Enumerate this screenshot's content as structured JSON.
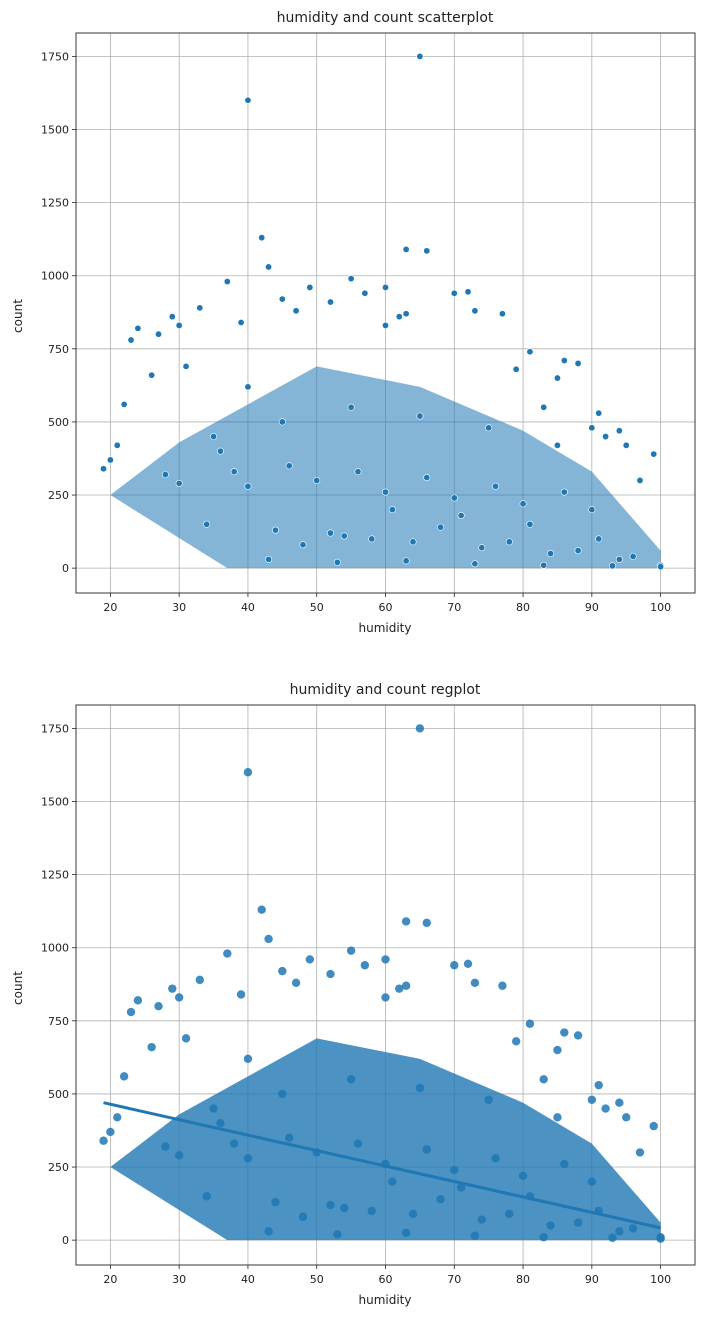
{
  "chart_data": [
    {
      "type": "scatter",
      "title": "humidity and count scatterplot",
      "xlabel": "humidity",
      "ylabel": "count",
      "xlim": [
        15,
        105
      ],
      "ylim": [
        -85,
        1830
      ],
      "xticks": [
        20,
        30,
        40,
        50,
        60,
        70,
        80,
        90,
        100
      ],
      "yticks": [
        0,
        250,
        500,
        750,
        1000,
        1250,
        1500,
        1750
      ],
      "grid": true,
      "color": "#1f77b4",
      "series": [
        {
          "x": [
            19,
            20,
            21,
            22,
            23,
            24,
            26,
            27,
            29,
            30,
            31,
            33,
            37,
            39,
            40,
            40,
            42,
            43,
            45,
            47,
            49,
            52,
            55,
            57,
            60,
            60,
            62,
            63,
            63,
            65,
            66,
            70,
            72,
            73,
            77,
            79,
            81,
            83,
            85,
            86,
            88,
            90,
            91,
            92,
            94,
            95,
            97,
            99,
            100,
            100,
            35,
            45,
            55,
            65,
            75,
            85,
            50,
            60,
            70,
            80,
            40,
            30,
            90,
            52,
            68,
            58,
            48,
            78,
            88,
            96,
            43,
            53,
            63,
            73,
            83,
            93,
            36,
            46,
            56,
            66,
            76,
            86,
            34,
            44,
            54,
            64,
            74,
            84,
            94,
            28,
            38,
            61,
            71,
            81,
            91
          ],
          "y": [
            340,
            370,
            420,
            560,
            780,
            820,
            660,
            800,
            860,
            830,
            690,
            890,
            980,
            840,
            1600,
            620,
            1130,
            1030,
            920,
            880,
            960,
            910,
            990,
            940,
            960,
            830,
            860,
            1090,
            870,
            1750,
            1085,
            940,
            945,
            880,
            870,
            680,
            740,
            550,
            650,
            710,
            700,
            480,
            530,
            450,
            470,
            420,
            300,
            390,
            10,
            5,
            450,
            500,
            550,
            520,
            480,
            420,
            300,
            260,
            240,
            220,
            280,
            290,
            200,
            120,
            140,
            100,
            80,
            90,
            60,
            40,
            30,
            20,
            25,
            15,
            10,
            8,
            400,
            350,
            330,
            310,
            280,
            260,
            150,
            130,
            110,
            90,
            70,
            50,
            30,
            320,
            330,
            200,
            180,
            150,
            100
          ]
        }
      ]
    },
    {
      "type": "scatter",
      "title": "humidity and count regplot",
      "xlabel": "humidity",
      "ylabel": "count",
      "xlim": [
        15,
        105
      ],
      "ylim": [
        -85,
        1830
      ],
      "xticks": [
        20,
        30,
        40,
        50,
        60,
        70,
        80,
        90,
        100
      ],
      "yticks": [
        0,
        250,
        500,
        750,
        1000,
        1250,
        1500,
        1750
      ],
      "grid": true,
      "color": "#1f77b4",
      "regression": {
        "x": [
          19,
          100
        ],
        "y": [
          470,
          42
        ]
      },
      "series": [
        {
          "x": [
            19,
            20,
            21,
            22,
            23,
            24,
            26,
            27,
            29,
            30,
            31,
            33,
            37,
            39,
            40,
            40,
            42,
            43,
            45,
            47,
            49,
            52,
            55,
            57,
            60,
            60,
            62,
            63,
            63,
            65,
            66,
            70,
            72,
            73,
            77,
            79,
            81,
            83,
            85,
            86,
            88,
            90,
            91,
            92,
            94,
            95,
            97,
            99,
            100,
            100,
            35,
            45,
            55,
            65,
            75,
            85,
            50,
            60,
            70,
            80,
            40,
            30,
            90,
            52,
            68,
            58,
            48,
            78,
            88,
            96,
            43,
            53,
            63,
            73,
            83,
            93,
            36,
            46,
            56,
            66,
            76,
            86,
            34,
            44,
            54,
            64,
            74,
            84,
            94,
            28,
            38,
            61,
            71,
            81,
            91
          ],
          "y": [
            340,
            370,
            420,
            560,
            780,
            820,
            660,
            800,
            860,
            830,
            690,
            890,
            980,
            840,
            1600,
            620,
            1130,
            1030,
            920,
            880,
            960,
            910,
            990,
            940,
            960,
            830,
            860,
            1090,
            870,
            1750,
            1085,
            940,
            945,
            880,
            870,
            680,
            740,
            550,
            650,
            710,
            700,
            480,
            530,
            450,
            470,
            420,
            300,
            390,
            10,
            5,
            450,
            500,
            550,
            520,
            480,
            420,
            300,
            260,
            240,
            220,
            280,
            290,
            200,
            120,
            140,
            100,
            80,
            90,
            60,
            40,
            30,
            20,
            25,
            15,
            10,
            8,
            400,
            350,
            330,
            310,
            280,
            260,
            150,
            130,
            110,
            90,
            70,
            50,
            30,
            320,
            330,
            200,
            180,
            150,
            100
          ]
        }
      ]
    }
  ]
}
